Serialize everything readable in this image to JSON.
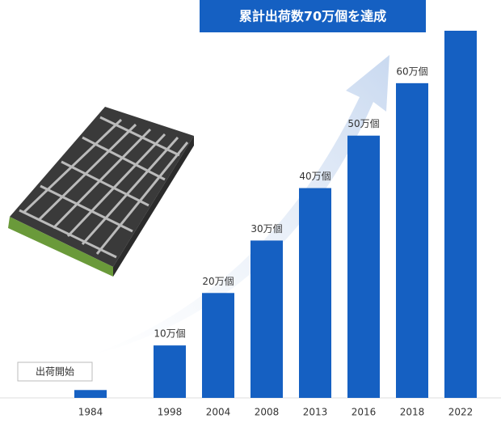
{
  "chart_data": {
    "type": "bar",
    "title": "累計出荷数70万個を達成",
    "annotation": "出荷開始",
    "categories": [
      "1984",
      "1998",
      "2004",
      "2008",
      "2013",
      "2016",
      "2018",
      "2022"
    ],
    "values": [
      1.5,
      10,
      20,
      30,
      40,
      50,
      60,
      70
    ],
    "value_labels": [
      null,
      "10万個",
      "20万個",
      "30万個",
      "40万個",
      "50万個",
      "60万個",
      null
    ],
    "color": "#1560c2",
    "ylim": [
      0,
      70
    ]
  }
}
